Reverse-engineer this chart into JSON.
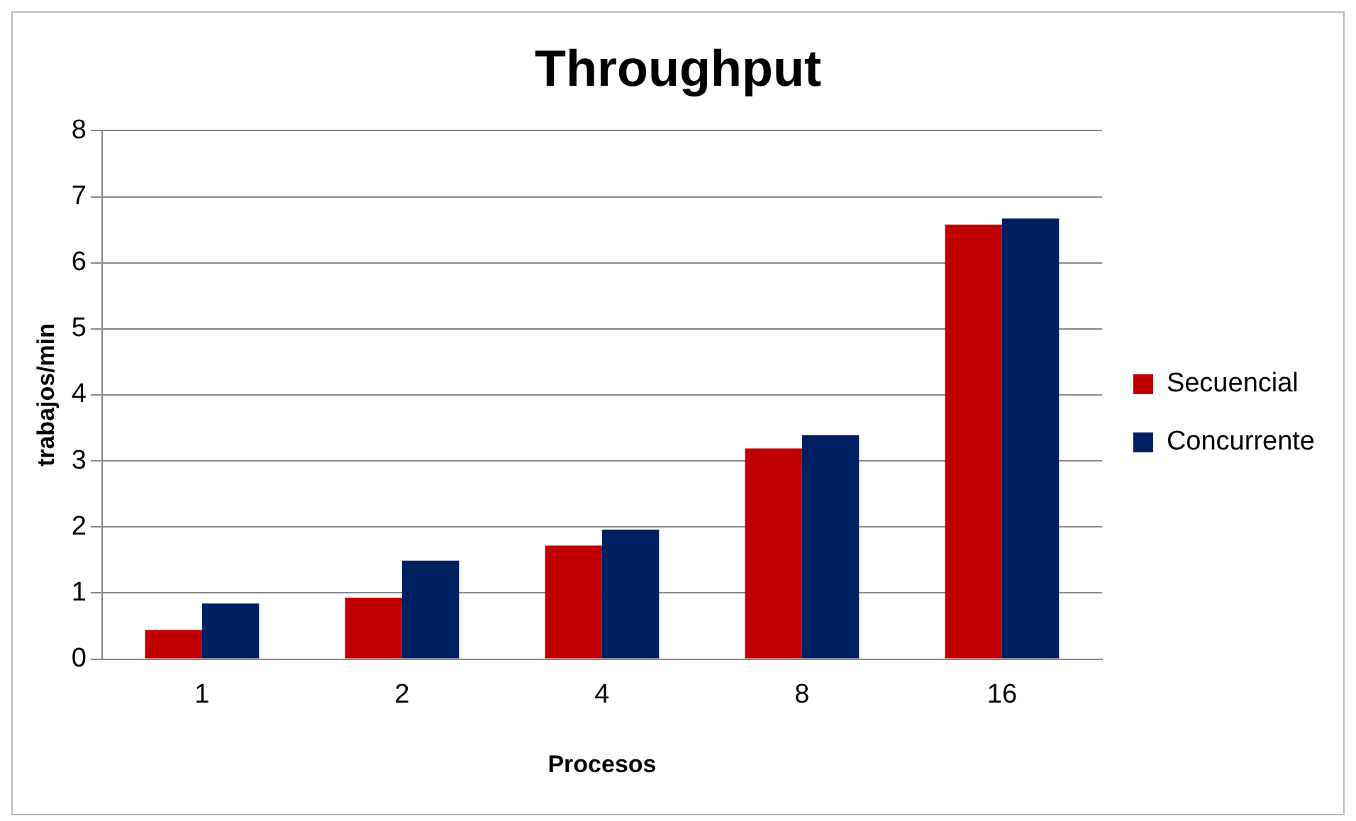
{
  "chart_data": {
    "type": "bar",
    "title": "Throughput",
    "xlabel": "Procesos",
    "ylabel": "trabajos/min",
    "categories": [
      "1",
      "2",
      "4",
      "8",
      "16"
    ],
    "series": [
      {
        "name": "Secuencial",
        "color": "#c00000",
        "values": [
          0.44,
          0.93,
          1.72,
          3.19,
          6.58
        ]
      },
      {
        "name": "Concurrente",
        "color": "#002060",
        "values": [
          0.84,
          1.49,
          1.96,
          3.39,
          6.67
        ]
      }
    ],
    "ylim": [
      0,
      8
    ],
    "yticks": [
      0,
      1,
      2,
      3,
      4,
      5,
      6,
      7,
      8
    ],
    "grid": "y",
    "legend": "right"
  }
}
